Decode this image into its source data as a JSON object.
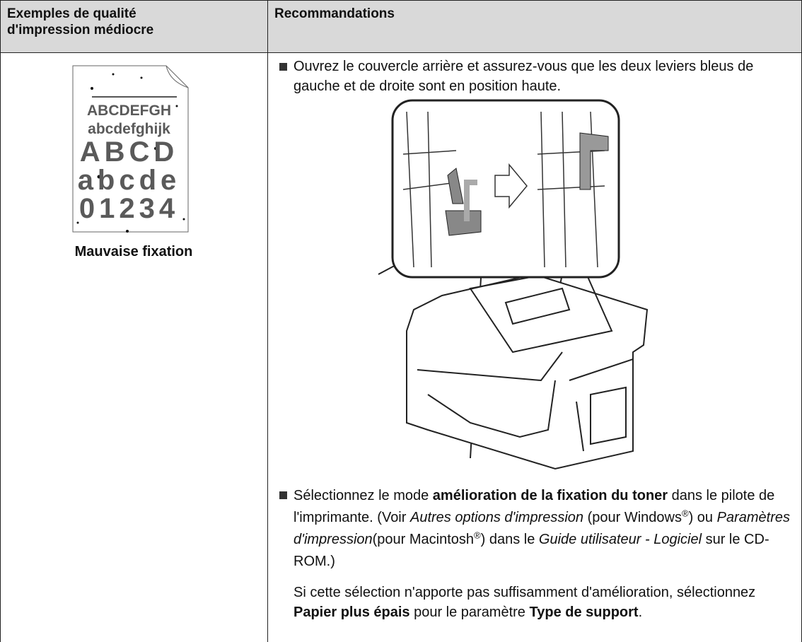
{
  "table": {
    "header": {
      "left_lines": [
        "Exemples de qualité",
        "d'impression médiocre"
      ],
      "right": "Recommandations"
    },
    "example": {
      "sample_lines": [
        "ABCDEFGH",
        "abcdefghijk",
        "ABCD",
        "abcde",
        "01234"
      ],
      "caption": "Mauvaise fixation"
    },
    "recommendations": [
      {
        "bullet": true,
        "runs": [
          {
            "text": "Ouvrez le couvercle arrière et assurez-vous que les deux leviers bleus de gauche et de droite sont en position haute."
          }
        ]
      },
      {
        "bullet": true,
        "runs": [
          {
            "text": "Sélectionnez le mode "
          },
          {
            "text": "amélioration de la fixation du toner",
            "style": "bold"
          },
          {
            "text": " dans le pilote de l'imprimante. (Voir "
          },
          {
            "text": "Autres options d'impression",
            "style": "italic"
          },
          {
            "text": " (pour Windows"
          },
          {
            "text": "®",
            "style": "sup"
          },
          {
            "text": ") ou "
          },
          {
            "text": "Paramètres d'impression",
            "style": "italic"
          },
          {
            "text": "(pour Macintosh"
          },
          {
            "text": "®",
            "style": "sup"
          },
          {
            "text": ") dans le "
          },
          {
            "text": "Guide utilisateur - Logiciel",
            "style": "italic"
          },
          {
            "text": " sur le CD-ROM.)"
          }
        ]
      },
      {
        "bullet": false,
        "runs": [
          {
            "text": "Si cette sélection n'apporte pas suffisamment d'amélioration, sélectionnez "
          },
          {
            "text": "Papier plus épais",
            "style": "bold"
          },
          {
            "text": " pour le paramètre "
          },
          {
            "text": "Type de support",
            "style": "bold"
          },
          {
            "text": "."
          }
        ]
      }
    ]
  }
}
